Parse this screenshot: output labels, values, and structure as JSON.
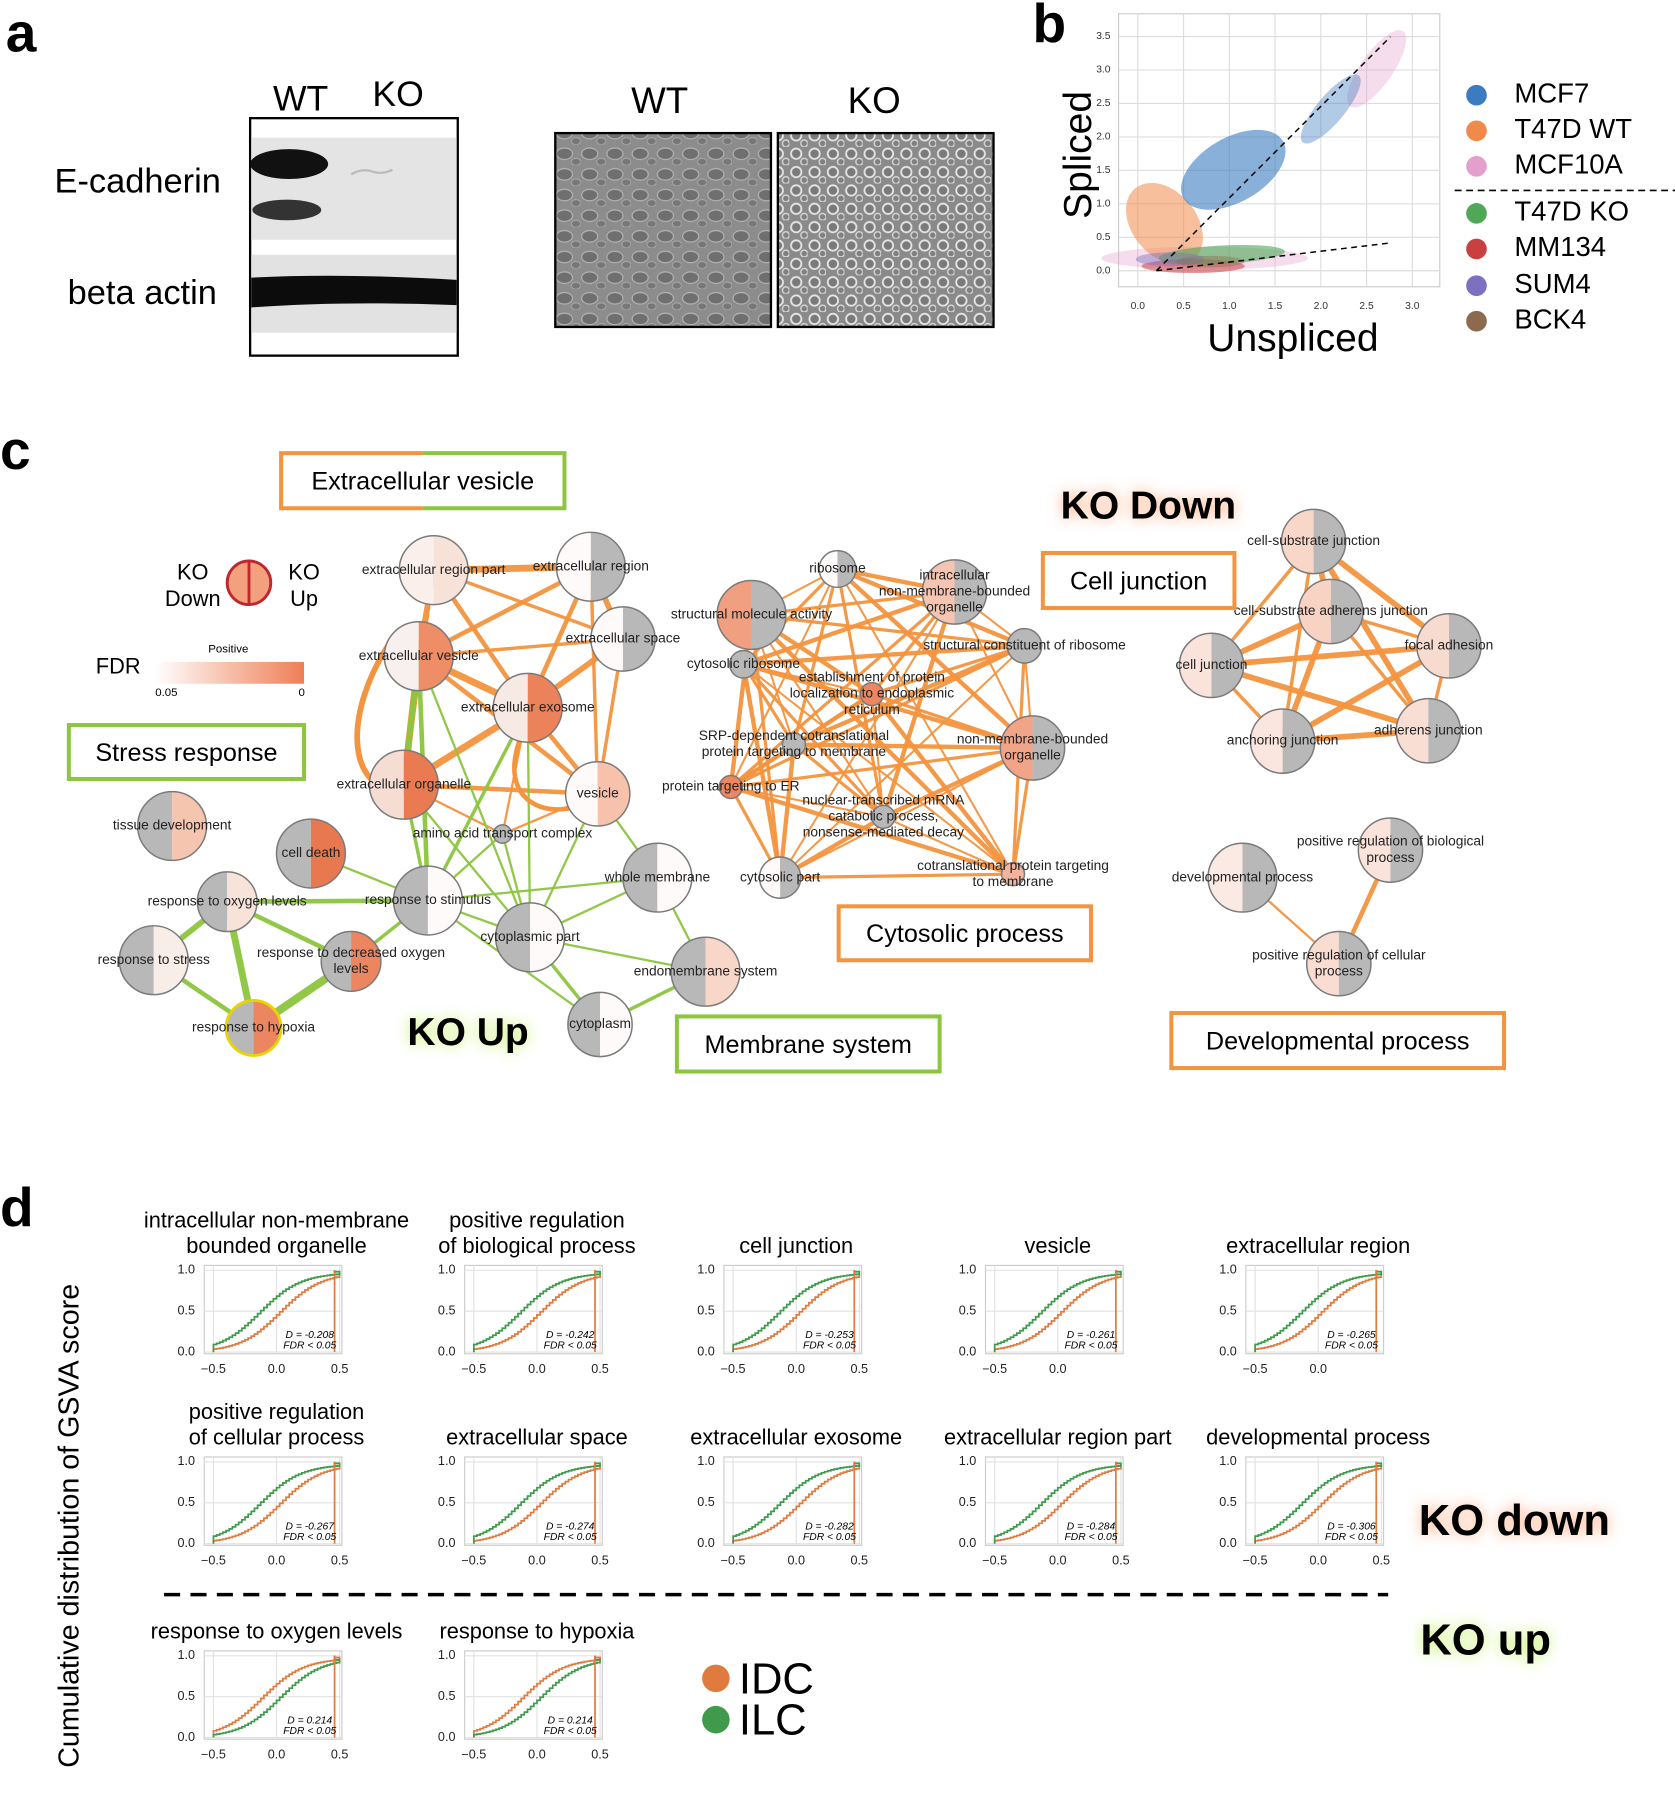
{
  "panel_labels": [
    "a",
    "b",
    "c",
    "d"
  ],
  "blot": {
    "lanes": [
      "WT",
      "KO"
    ],
    "rows": [
      "E-cadherin",
      "beta actin"
    ]
  },
  "micrographs": [
    "WT",
    "KO"
  ],
  "scatter": {
    "type": "scatter",
    "xlabel": "Unspliced",
    "ylabel": "Spliced",
    "xlim": [
      -0.21,
      3.3
    ],
    "ylim": [
      -0.24,
      3.84
    ],
    "xticks": [
      {
        "value": 0,
        "label": "0.0"
      },
      0.5,
      {
        "value": 1,
        "label": "1.0"
      },
      1.5,
      {
        "value": 2,
        "label": "2.0"
      },
      2.5,
      {
        "value": 3,
        "label": "3.0"
      }
    ],
    "yticks": [
      {
        "value": 0,
        "label": "0.0"
      },
      0.5,
      {
        "value": 1,
        "label": "1.0"
      },
      1.5,
      {
        "value": 2,
        "label": "2.0"
      },
      2.5,
      {
        "value": 3,
        "label": "3.0"
      },
      3.5
    ],
    "grid": true,
    "series": [
      {
        "name": "MCF7",
        "color": "#3b7bbf"
      },
      {
        "name": "T47D WT",
        "color": "#f08a4b"
      },
      {
        "name": "MCF10A",
        "color": "#e49fcc"
      },
      {
        "name": "T47D KO",
        "color": "#4ea857"
      },
      {
        "name": "MM134",
        "color": "#c84040"
      },
      {
        "name": "SUM4",
        "color": "#7d70c0"
      },
      {
        "name": "BCK4",
        "color": "#8b6a4e"
      }
    ]
  },
  "network": {
    "legend": {
      "down": [
        "KO",
        "Down"
      ],
      "up": [
        "KO",
        "Up"
      ],
      "fdr": "FDR",
      "positive": "Positive",
      "low": "0.05",
      "high": "0"
    },
    "groups": [
      "Extracellular vesicle",
      "Stress response",
      "Cell junction",
      "Cytosolic process",
      "Membrane system",
      "Developmental process"
    ],
    "ko_down": "KO Down",
    "ko_up": "KO Up",
    "nodes": [
      [
        "extracellular region part"
      ],
      [
        "extracellular region"
      ],
      [
        "extracellular vesicle"
      ],
      [
        "extracellular space"
      ],
      [
        "extracellular exosome"
      ],
      [
        "extracellular organelle"
      ],
      [
        "vesicle"
      ],
      [
        "amino acid transport complex"
      ],
      [
        "tissue development"
      ],
      [
        "cell death"
      ],
      [
        "response to oxygen levels"
      ],
      [
        "response to stimulus"
      ],
      [
        "response to stress"
      ],
      [
        "response to decreased oxygen",
        "levels"
      ],
      [
        "response to hypoxia"
      ],
      [
        "cytoplasmic part"
      ],
      [
        "whole membrane"
      ],
      [
        "endomembrane system"
      ],
      [
        "cytoplasm"
      ],
      [
        "ribosome"
      ],
      [
        "intracellular",
        "non-membrane-bounded",
        "organelle"
      ],
      [
        "structural molecule activity"
      ],
      [
        "cytosolic ribosome"
      ],
      [
        "structural constituent of ribosome"
      ],
      [
        "establishment of protein",
        "localization to endoplasmic",
        "reticulum"
      ],
      [
        "SRP-dependent cotranslational",
        "protein targeting to membrane"
      ],
      [
        "non-membrane-bounded",
        "organelle"
      ],
      [
        "protein targeting to ER"
      ],
      [
        "nuclear-transcribed mRNA",
        "catabolic process,",
        "nonsense-mediated decay"
      ],
      [
        "cytosolic part"
      ],
      [
        "cotranslational protein targeting",
        "to membrane"
      ],
      [
        "cell-substrate junction"
      ],
      [
        "cell-substrate adherens junction"
      ],
      [
        "cell junction"
      ],
      [
        "focal adhesion"
      ],
      [
        "anchoring junction"
      ],
      [
        "adherens junction"
      ],
      [
        "developmental process"
      ],
      [
        "positive regulation of biological",
        "process"
      ],
      [
        "positive regulation of cellular",
        "process"
      ]
    ]
  },
  "gsva": {
    "ylabel": "Cumulative distribution of GSVA score",
    "ko_down": "KO down",
    "ko_up": "KO up",
    "xlim": [
      -0.573,
      0.518
    ],
    "ylim": [
      -0.02,
      1.06
    ],
    "xticks": [
      {
        "value": -0.5,
        "label": "−0.5"
      },
      {
        "value": 0,
        "label": "0.0"
      },
      0.5
    ],
    "yticks": [
      {
        "value": 0,
        "label": "0.0"
      },
      0.5,
      {
        "value": 1,
        "label": "1.0"
      }
    ],
    "fdr": "FDR < 0.05",
    "series": [
      {
        "name": "IDC",
        "color": "#e07b3f"
      },
      {
        "name": "ILC",
        "color": "#3f9a4c"
      }
    ],
    "charts": [
      {
        "title": [
          "intracellular non-membrane",
          "bounded organelle"
        ],
        "d": "D = -0.208"
      },
      {
        "title": [
          "positive regulation",
          "of biological process"
        ],
        "d": "D = -0.242"
      },
      {
        "title": [
          "cell junction"
        ],
        "d": "D = -0.253"
      },
      {
        "title": [
          "vesicle"
        ],
        "d": "D = -0.261",
        "xticks": [
          {
            "value": -0.5,
            "label": "−0.5"
          },
          {
            "value": 0,
            "label": "0.0"
          }
        ]
      },
      {
        "title": [
          "extracellular region"
        ],
        "d": "D = -0.265",
        "xticks": [
          {
            "value": -0.5,
            "label": "−0.5"
          },
          {
            "value": 0,
            "label": "0.0"
          }
        ]
      },
      {
        "title": [
          "positive regulation",
          "of cellular process"
        ],
        "d": "D = -0.267"
      },
      {
        "title": [
          "extracellular space"
        ],
        "d": "D = -0.274"
      },
      {
        "title": [
          "extracellular exosome"
        ],
        "d": "D = -0.282"
      },
      {
        "title": [
          "extracellular region part"
        ],
        "d": "D = -0.284"
      },
      {
        "title": [
          "developmental process"
        ],
        "d": "D = -0.306"
      },
      {
        "title": [
          "response to oxygen levels"
        ],
        "d": "D = 0.214"
      },
      {
        "title": [
          "response to hypoxia"
        ],
        "d": "D = 0.214"
      }
    ]
  }
}
